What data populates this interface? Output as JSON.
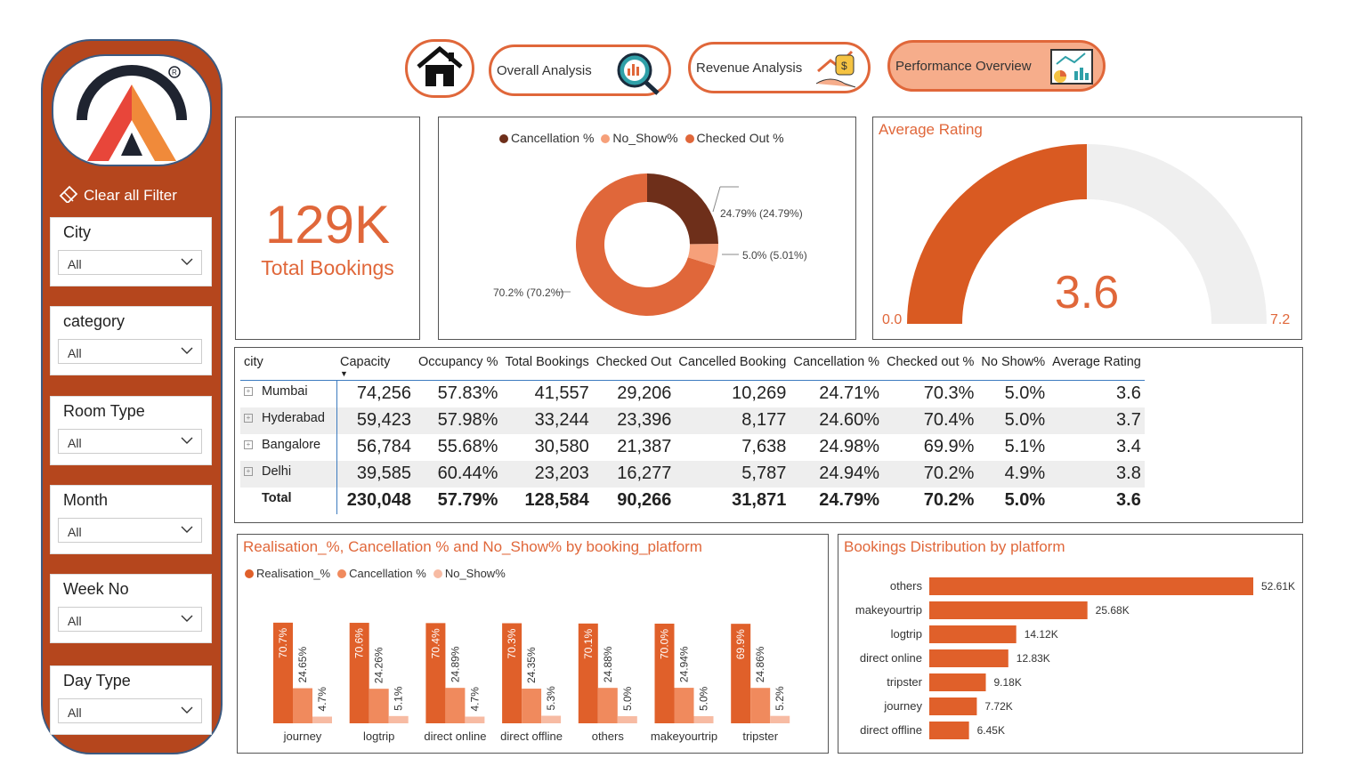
{
  "sidebar": {
    "clear_filter": "Clear all Filter",
    "slicers": [
      {
        "title": "City",
        "value": "All"
      },
      {
        "title": "category",
        "value": "All"
      },
      {
        "title": "Room Type",
        "value": "All"
      },
      {
        "title": "Month",
        "value": "All"
      },
      {
        "title": "Week No",
        "value": "All"
      },
      {
        "title": "Day Type",
        "value": "All"
      }
    ]
  },
  "nav": {
    "overall": "Overall Analysis",
    "revenue": "Revenue Analysis",
    "performance": "Performance Overview"
  },
  "kpi": {
    "value": "129K",
    "label": "Total Bookings"
  },
  "donut": {
    "legend": [
      "Cancellation %",
      "No_Show%",
      "Checked Out %"
    ],
    "labels": [
      "24.79% (24.79%)",
      "5.0% (5.01%)",
      "70.2% (70.2%)"
    ]
  },
  "gauge": {
    "title": "Average Rating",
    "value": "3.6",
    "min": "0.0",
    "max": "7.2"
  },
  "table": {
    "headers": [
      "city",
      "Capacity",
      "Occupancy %",
      "Total Bookings",
      "Checked Out",
      "Cancelled Booking",
      "Cancellation %",
      "Checked out %",
      "No Show%",
      "Average Rating"
    ],
    "rows": [
      [
        "Mumbai",
        "74,256",
        "57.83%",
        "41,557",
        "29,206",
        "10,269",
        "24.71%",
        "70.3%",
        "5.0%",
        "3.6"
      ],
      [
        "Hyderabad",
        "59,423",
        "57.98%",
        "33,244",
        "23,396",
        "8,177",
        "24.60%",
        "70.4%",
        "5.0%",
        "3.7"
      ],
      [
        "Bangalore",
        "56,784",
        "55.68%",
        "30,580",
        "21,387",
        "7,638",
        "24.98%",
        "69.9%",
        "5.1%",
        "3.4"
      ],
      [
        "Delhi",
        "39,585",
        "60.44%",
        "23,203",
        "16,277",
        "5,787",
        "24.94%",
        "70.2%",
        "4.9%",
        "3.8"
      ]
    ],
    "total": [
      "Total",
      "230,048",
      "57.79%",
      "128,584",
      "90,266",
      "31,871",
      "24.79%",
      "70.2%",
      "5.0%",
      "3.6"
    ]
  },
  "chart_data": [
    {
      "type": "pie",
      "categories": [
        "Cancellation %",
        "No_Show%",
        "Checked Out %"
      ],
      "values": [
        24.79,
        5.01,
        70.2
      ],
      "colors": [
        "#6e2f1a",
        "#f6a07a",
        "#e0673a"
      ]
    },
    {
      "type": "bar",
      "title": "Realisation_%, Cancellation % and No_Show% by booking_platform",
      "categories": [
        "journey",
        "logtrip",
        "direct online",
        "direct offline",
        "others",
        "makeyourtrip",
        "tripster"
      ],
      "series": [
        {
          "name": "Realisation_%",
          "values": [
            70.7,
            70.6,
            70.4,
            70.3,
            70.1,
            70.0,
            69.9
          ],
          "labels": [
            "70.7%",
            "70.6%",
            "70.4%",
            "70.3%",
            "70.1%",
            "70.0%",
            "69.9%"
          ],
          "color": "#e0602a"
        },
        {
          "name": "Cancellation %",
          "values": [
            24.65,
            24.26,
            24.89,
            24.35,
            24.88,
            24.94,
            24.86
          ],
          "labels": [
            "24.65%",
            "24.26%",
            "24.89%",
            "24.35%",
            "24.88%",
            "24.94%",
            "24.86%"
          ],
          "color": "#f08a5d"
        },
        {
          "name": "No_Show%",
          "values": [
            4.7,
            5.1,
            4.7,
            5.3,
            5.0,
            5.0,
            5.2
          ],
          "labels": [
            "4.7%",
            "5.1%",
            "4.7%",
            "5.3%",
            "5.0%",
            "5.0%",
            "5.2%"
          ],
          "color": "#f7bba3"
        }
      ]
    },
    {
      "type": "bar",
      "orientation": "horizontal",
      "title": "Bookings Distribution by platform",
      "categories": [
        "others",
        "makeyourtrip",
        "logtrip",
        "direct online",
        "tripster",
        "journey",
        "direct offline"
      ],
      "values": [
        52.61,
        25.68,
        14.12,
        12.83,
        9.18,
        7.72,
        6.45
      ],
      "labels": [
        "52.61K",
        "25.68K",
        "14.12K",
        "12.83K",
        "9.18K",
        "7.72K",
        "6.45K"
      ],
      "color": "#e0602a"
    }
  ]
}
